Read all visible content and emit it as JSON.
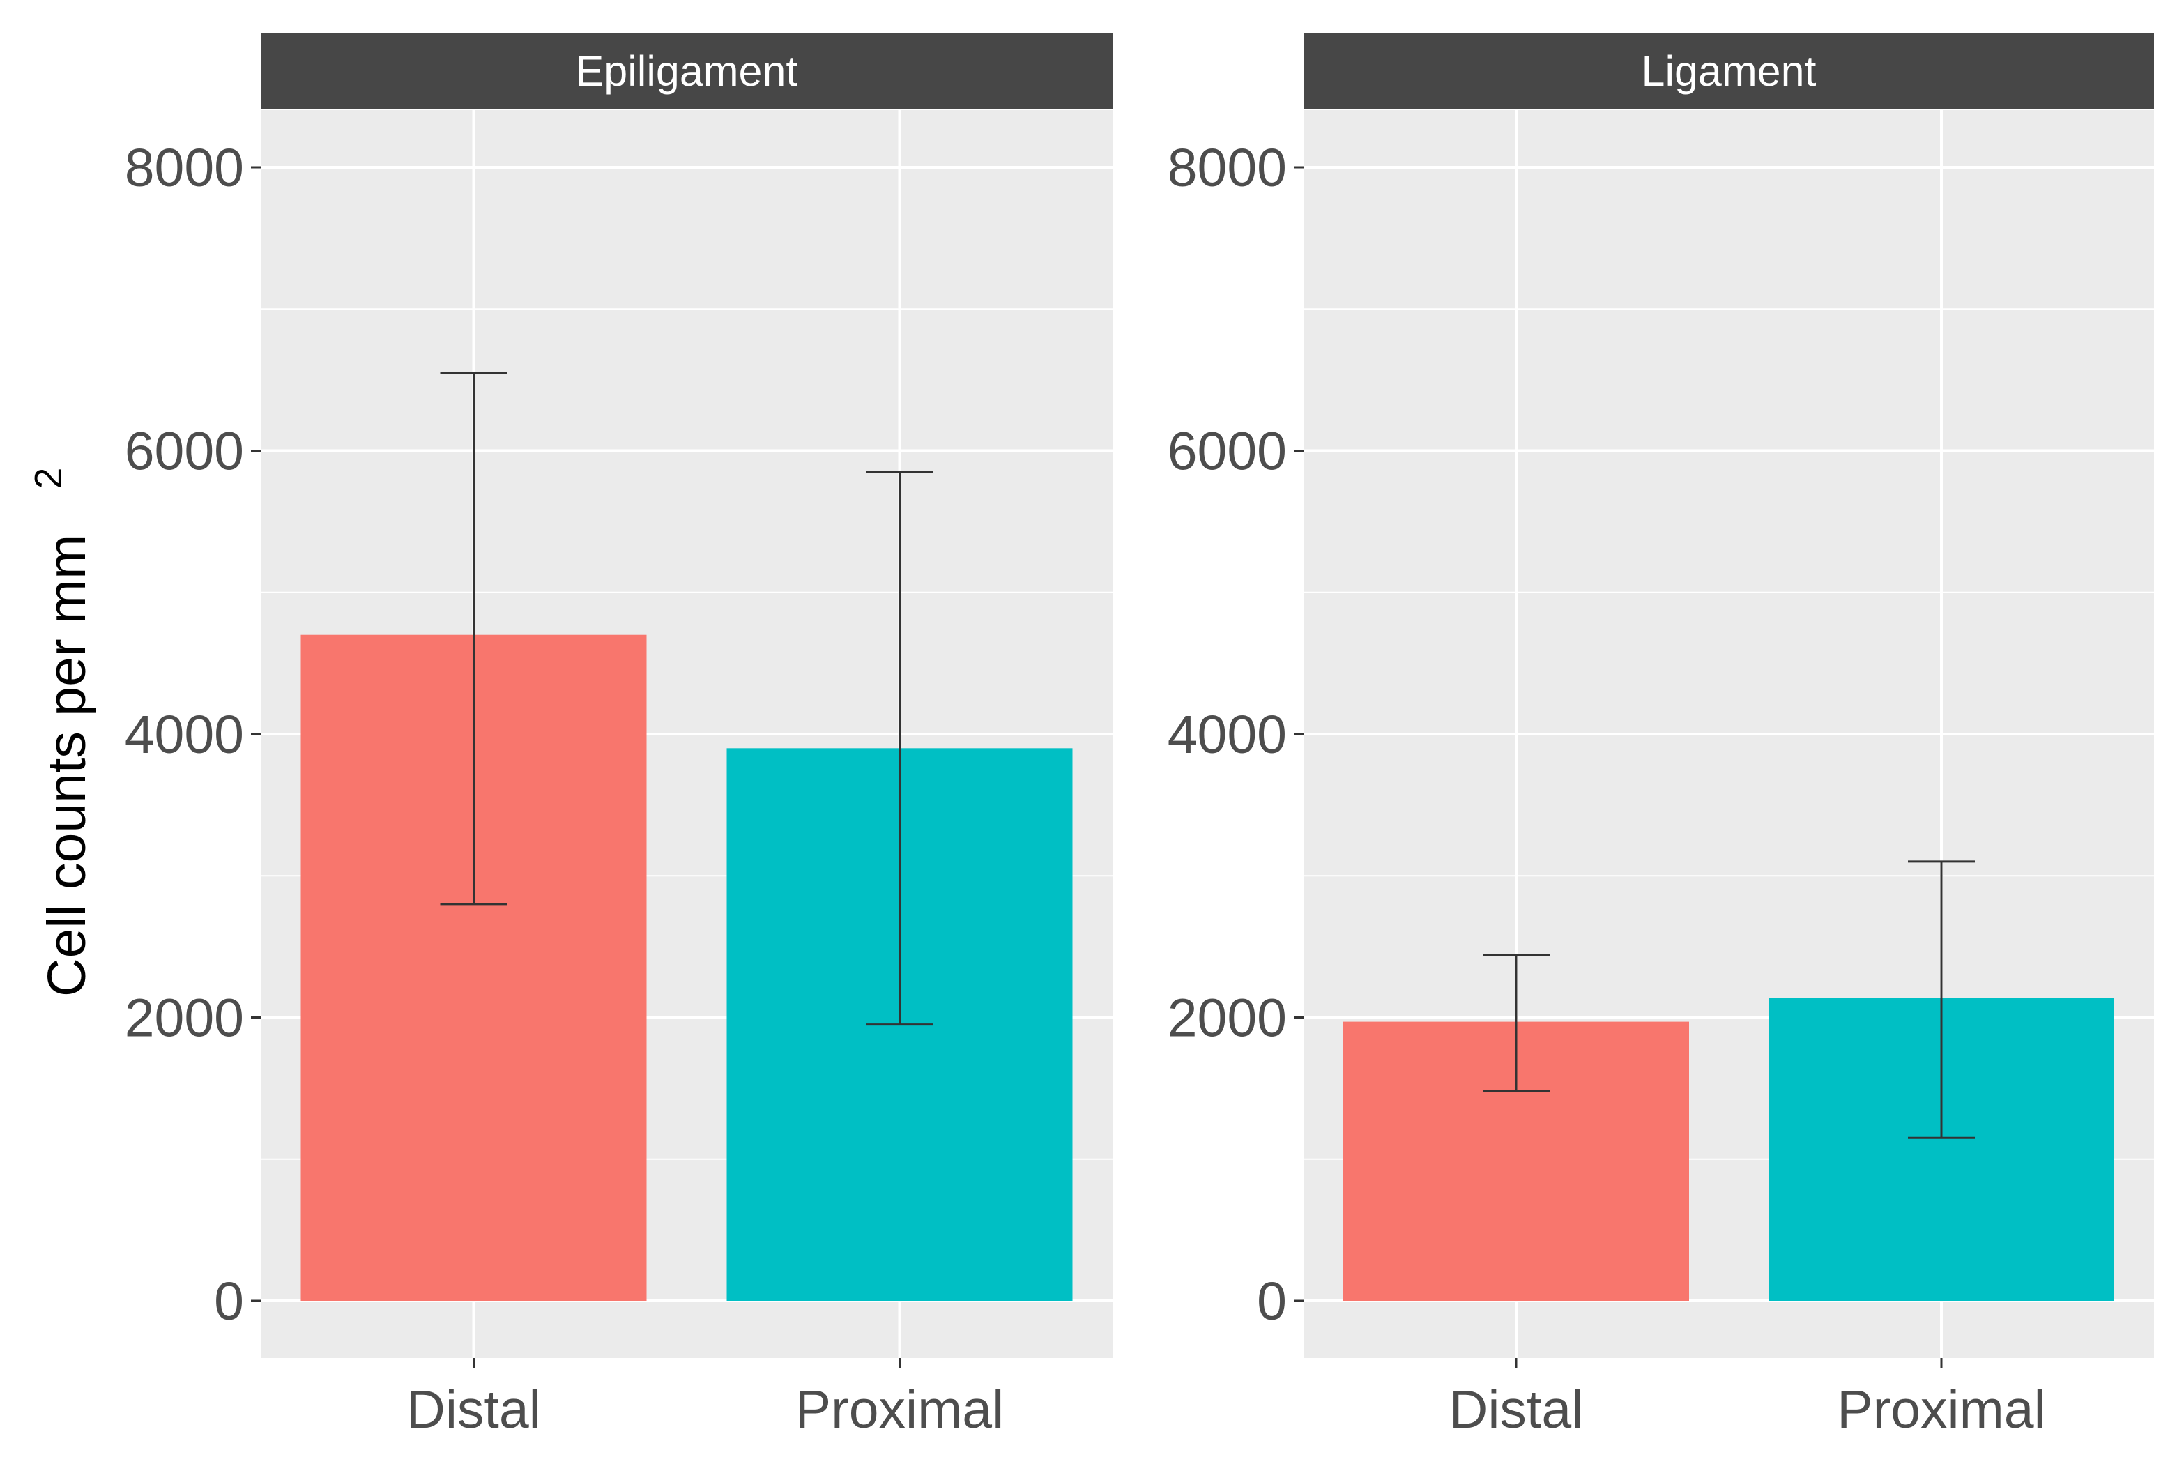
{
  "chart_data": {
    "type": "bar",
    "ylabel": "Cell counts per mm",
    "ylabel_superscript": "2",
    "ylim": [
      0,
      8500
    ],
    "yticks": [
      0,
      2000,
      4000,
      6000,
      8000
    ],
    "categories": [
      "Distal",
      "Proximal"
    ],
    "colors": {
      "Distal": "#F8766D",
      "Proximal": "#00BFC4"
    },
    "facets": [
      {
        "title": "Epiligament",
        "bars": [
          {
            "category": "Distal",
            "value": 4700,
            "err_low": 2800,
            "err_high": 6550
          },
          {
            "category": "Proximal",
            "value": 3900,
            "err_low": 1950,
            "err_high": 5850
          }
        ]
      },
      {
        "title": "Ligament",
        "bars": [
          {
            "category": "Distal",
            "value": 1970,
            "err_low": 1480,
            "err_high": 2440
          },
          {
            "category": "Proximal",
            "value": 2140,
            "err_low": 1150,
            "err_high": 3100
          }
        ]
      }
    ]
  }
}
